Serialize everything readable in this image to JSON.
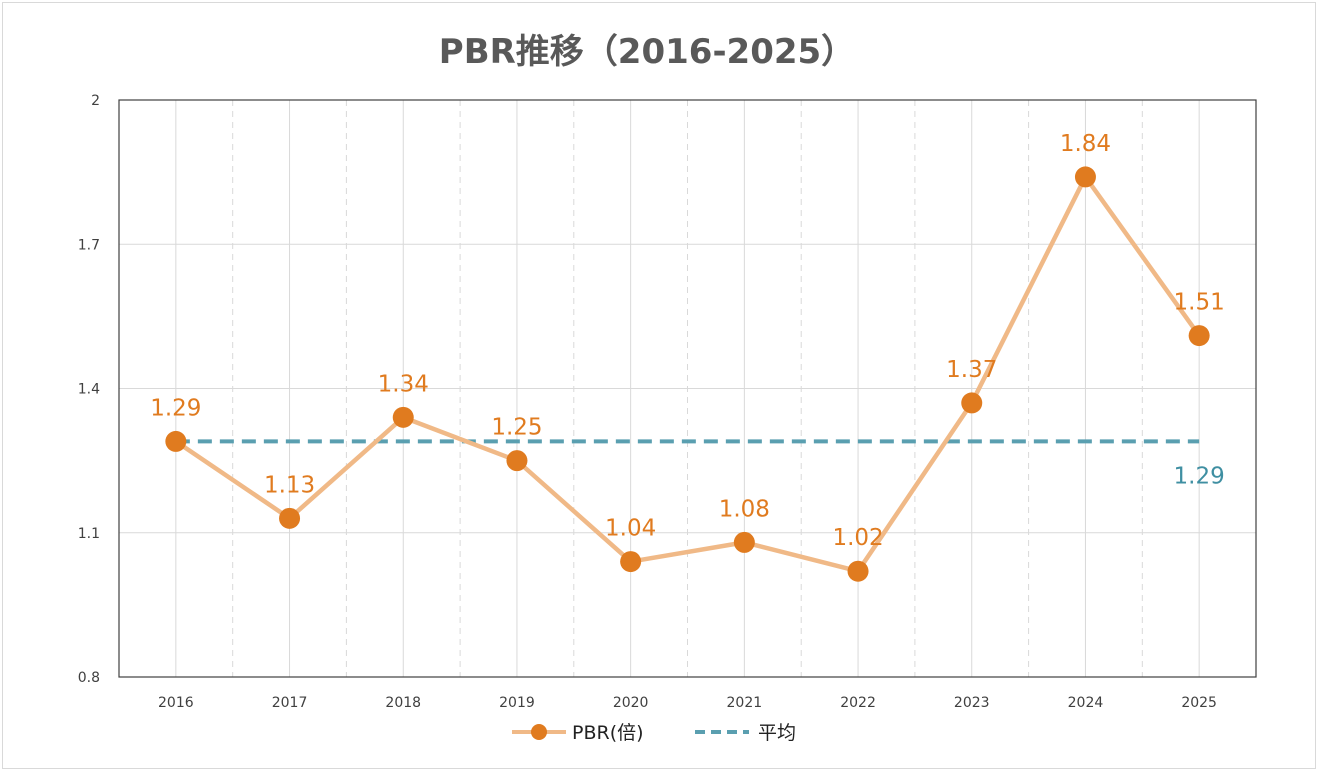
{
  "chart_data": {
    "type": "line",
    "title": "PBR推移（2016-2025）",
    "categories": [
      "2016",
      "2017",
      "2018",
      "2019",
      "2020",
      "2021",
      "2022",
      "2023",
      "2024",
      "2025"
    ],
    "ylim": [
      0.8,
      2.0
    ],
    "yticks": [
      0.8,
      1.1,
      1.4,
      1.7,
      2.0
    ],
    "ytick_labels": [
      "0.8",
      "1.1",
      "1.4",
      "1.7",
      "2"
    ],
    "grid": true,
    "legend_position": "bottom-center",
    "series": [
      {
        "name": "PBR(倍)",
        "values": [
          1.29,
          1.13,
          1.34,
          1.25,
          1.04,
          1.08,
          1.02,
          1.37,
          1.84,
          1.51
        ],
        "labels": [
          "1.29",
          "1.13",
          "1.34",
          "1.25",
          "1.04",
          "1.08",
          "1.02",
          "1.37",
          "1.84",
          "1.51"
        ],
        "line_color": "#f0b987",
        "marker_color": "#e07b1f",
        "label_color": "#e07b1f"
      },
      {
        "name": "平均",
        "value": 1.29,
        "label": "1.29",
        "line_color": "#5a9fb0",
        "label_color": "#3f8fa2",
        "style": "dashed"
      }
    ]
  }
}
